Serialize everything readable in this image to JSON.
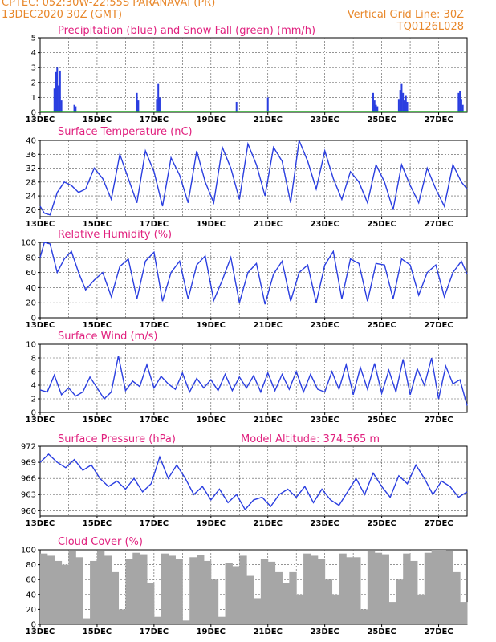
{
  "header": {
    "station": "CPTEC:   052:30W-22:55S   PARANAVAI (PR)",
    "run": "13DEC2020 30Z (GMT)",
    "grid_note": "Vertical Grid Line: 30Z",
    "code": "TQ0126L028"
  },
  "colors": {
    "header": "#e8872a",
    "title": "#e0207e",
    "line": "#2a3ee0",
    "snow": "#1fa01f",
    "cloud": "#a6a6a6"
  },
  "x_labels": [
    "13DEC",
    "15DEC",
    "17DEC",
    "19DEC",
    "21DEC",
    "23DEC",
    "25DEC",
    "27DEC"
  ],
  "chart_data": [
    {
      "type": "bar",
      "title": "Precipitation (blue) and Snow Fall (green) (mm/h)",
      "ylim": [
        0,
        5
      ],
      "yticks": [
        0,
        1,
        2,
        3,
        4,
        5
      ],
      "series": [
        {
          "name": "Precipitation",
          "x": [
            0.5,
            0.55,
            0.6,
            0.65,
            0.7,
            0.75,
            1.2,
            1.25,
            3.4,
            3.45,
            4.1,
            4.15,
            4.2,
            6.9,
            8.0,
            11.7,
            11.75,
            11.8,
            11.85,
            12.6,
            12.65,
            12.7,
            12.75,
            12.8,
            12.85,
            12.9,
            14.7,
            14.75,
            14.8,
            14.85
          ],
          "values": [
            1.6,
            2.7,
            3.0,
            1.8,
            2.8,
            0.8,
            0.5,
            0.4,
            1.3,
            0.8,
            0.9,
            1.9,
            1.0,
            0.7,
            1.0,
            1.3,
            0.8,
            0.5,
            0.4,
            0.9,
            1.5,
            1.9,
            1.3,
            0.8,
            1.1,
            0.7,
            1.3,
            1.4,
            0.9,
            0.5
          ]
        },
        {
          "name": "Snow Fall",
          "x": [
            0,
            15
          ],
          "values": [
            0,
            0
          ]
        }
      ]
    },
    {
      "type": "line",
      "title": "Surface Temperature (nC)",
      "ylim": [
        18,
        40
      ],
      "yticks": [
        20,
        24,
        28,
        32,
        36,
        40
      ],
      "series": [
        {
          "name": "Temperature",
          "x": [
            0,
            0.15,
            0.35,
            0.6,
            0.85,
            1.1,
            1.35,
            1.6,
            1.9,
            2.2,
            2.5,
            2.8,
            3.1,
            3.4,
            3.7,
            4.0,
            4.3,
            4.6,
            4.9,
            5.2,
            5.5,
            5.8,
            6.1,
            6.4,
            6.7,
            7.0,
            7.3,
            7.6,
            7.9,
            8.2,
            8.5,
            8.8,
            9.1,
            9.4,
            9.7,
            10.0,
            10.3,
            10.6,
            10.9,
            11.2,
            11.5,
            11.8,
            12.1,
            12.4,
            12.7,
            13.0,
            13.3,
            13.6,
            13.9,
            14.2,
            14.5,
            14.8,
            15.0
          ],
          "values": [
            21,
            19,
            18.5,
            25,
            28,
            27,
            25,
            26,
            32,
            29,
            23,
            36,
            29,
            22,
            37,
            31,
            21,
            35,
            30,
            22,
            37,
            28,
            22,
            38,
            32,
            23,
            39,
            33,
            24,
            38,
            34,
            22,
            40,
            34,
            26,
            37,
            29,
            23,
            31,
            28,
            22,
            33,
            28,
            20,
            33,
            27,
            22,
            32,
            26,
            21,
            33,
            28,
            26
          ]
        }
      ]
    },
    {
      "type": "line",
      "title": "Relative Humidity (%)",
      "ylim": [
        0,
        100
      ],
      "yticks": [
        0,
        20,
        40,
        60,
        80,
        100
      ],
      "series": [
        {
          "name": "Relative Humidity",
          "x": [
            0,
            0.15,
            0.35,
            0.6,
            0.85,
            1.1,
            1.35,
            1.6,
            1.9,
            2.2,
            2.5,
            2.8,
            3.1,
            3.4,
            3.7,
            4.0,
            4.3,
            4.6,
            4.9,
            5.2,
            5.5,
            5.8,
            6.1,
            6.4,
            6.7,
            7.0,
            7.3,
            7.6,
            7.9,
            8.2,
            8.5,
            8.8,
            9.1,
            9.4,
            9.7,
            10.0,
            10.3,
            10.6,
            10.9,
            11.2,
            11.5,
            11.8,
            12.1,
            12.4,
            12.7,
            13.0,
            13.3,
            13.6,
            13.9,
            14.2,
            14.5,
            14.8,
            15.0
          ],
          "values": [
            80,
            100,
            98,
            60,
            78,
            88,
            60,
            37,
            50,
            60,
            28,
            68,
            78,
            25,
            75,
            87,
            22,
            60,
            75,
            25,
            70,
            82,
            23,
            50,
            80,
            20,
            60,
            72,
            18,
            58,
            75,
            22,
            60,
            70,
            20,
            70,
            88,
            25,
            78,
            72,
            22,
            72,
            70,
            25,
            78,
            70,
            30,
            60,
            70,
            28,
            60,
            75,
            58
          ]
        }
      ]
    },
    {
      "type": "line",
      "title": "Surface Wind (m/s)",
      "ylim": [
        0,
        10
      ],
      "yticks": [
        0,
        2,
        4,
        6,
        8,
        10
      ],
      "series": [
        {
          "name": "Wind Speed",
          "x": [
            0,
            0.25,
            0.5,
            0.75,
            1.0,
            1.25,
            1.5,
            1.75,
            2.0,
            2.25,
            2.5,
            2.75,
            3.0,
            3.25,
            3.5,
            3.75,
            4.0,
            4.25,
            4.5,
            4.75,
            5.0,
            5.25,
            5.5,
            5.75,
            6.0,
            6.25,
            6.5,
            6.75,
            7.0,
            7.25,
            7.5,
            7.75,
            8.0,
            8.25,
            8.5,
            8.75,
            9.0,
            9.25,
            9.5,
            9.75,
            10.0,
            10.25,
            10.5,
            10.75,
            11.0,
            11.25,
            11.5,
            11.75,
            12.0,
            12.25,
            12.5,
            12.75,
            13.0,
            13.25,
            13.5,
            13.75,
            14.0,
            14.25,
            14.5,
            14.75,
            15.0
          ],
          "values": [
            3.3,
            3.0,
            5.5,
            2.6,
            3.6,
            2.4,
            3.0,
            5.2,
            3.6,
            2.0,
            3.0,
            8.3,
            3.2,
            4.6,
            3.8,
            7.0,
            3.6,
            5.3,
            4.2,
            3.4,
            5.8,
            3.0,
            5.0,
            3.6,
            4.8,
            3.2,
            5.6,
            3.2,
            5.2,
            3.6,
            5.4,
            3.0,
            5.8,
            3.2,
            5.6,
            3.4,
            6.0,
            3.0,
            5.6,
            3.4,
            3.0,
            6.0,
            3.4,
            7.0,
            2.6,
            6.6,
            3.4,
            7.2,
            2.8,
            6.2,
            3.0,
            7.8,
            2.6,
            6.4,
            4.0,
            8.0,
            2.0,
            6.8,
            4.2,
            4.8,
            1.0
          ]
        }
      ]
    },
    {
      "type": "line",
      "title": "Surface Pressure (hPa)",
      "annotation": "Model Altitude: 374.565  m",
      "ylim": [
        959,
        972
      ],
      "yticks": [
        960,
        963,
        966,
        969,
        972
      ],
      "series": [
        {
          "name": "Pressure",
          "x": [
            0,
            0.3,
            0.6,
            0.9,
            1.2,
            1.5,
            1.8,
            2.1,
            2.4,
            2.7,
            3.0,
            3.3,
            3.6,
            3.9,
            4.2,
            4.5,
            4.8,
            5.1,
            5.4,
            5.7,
            6.0,
            6.3,
            6.6,
            6.9,
            7.2,
            7.5,
            7.8,
            8.1,
            8.4,
            8.7,
            9.0,
            9.3,
            9.6,
            9.9,
            10.2,
            10.5,
            10.8,
            11.1,
            11.4,
            11.7,
            12.0,
            12.3,
            12.6,
            12.9,
            13.2,
            13.5,
            13.8,
            14.1,
            14.4,
            14.7,
            15.0
          ],
          "values": [
            969,
            970.5,
            969,
            968,
            969.5,
            967.5,
            968.5,
            966,
            964.5,
            965.5,
            964,
            966,
            963.5,
            965,
            970,
            966,
            968.5,
            966,
            963,
            964.5,
            962,
            964,
            961.5,
            963,
            960.2,
            962,
            962.5,
            960.8,
            963,
            964,
            962.5,
            964.5,
            961.5,
            964,
            962,
            961,
            963.5,
            966,
            963,
            967,
            964.5,
            962.5,
            966.5,
            965,
            968.5,
            966,
            963,
            965.5,
            964.5,
            962.5,
            963.5
          ]
        }
      ]
    },
    {
      "type": "bar",
      "title": "Cloud Cover (%)",
      "ylim": [
        0,
        100
      ],
      "yticks": [
        0,
        20,
        40,
        60,
        80,
        100
      ],
      "series": [
        {
          "name": "Cloud Cover",
          "x": [
            0,
            0.25,
            0.5,
            0.75,
            1.0,
            1.25,
            1.5,
            1.75,
            2.0,
            2.25,
            2.5,
            2.75,
            3.0,
            3.25,
            3.5,
            3.75,
            4.0,
            4.25,
            4.5,
            4.75,
            5.0,
            5.25,
            5.5,
            5.75,
            6.0,
            6.25,
            6.5,
            6.75,
            7.0,
            7.25,
            7.5,
            7.75,
            8.0,
            8.25,
            8.5,
            8.75,
            9.0,
            9.25,
            9.5,
            9.75,
            10.0,
            10.25,
            10.5,
            10.75,
            11.0,
            11.25,
            11.5,
            11.75,
            12.0,
            12.25,
            12.5,
            12.75,
            13.0,
            13.25,
            13.5,
            13.75,
            14.0,
            14.25,
            14.5,
            14.75
          ],
          "values": [
            95,
            92,
            85,
            80,
            98,
            90,
            8,
            85,
            98,
            92,
            70,
            20,
            88,
            96,
            94,
            55,
            10,
            95,
            92,
            88,
            5,
            90,
            93,
            85,
            60,
            10,
            82,
            78,
            92,
            65,
            35,
            88,
            84,
            70,
            55,
            70,
            40,
            95,
            92,
            88,
            60,
            40,
            95,
            90,
            90,
            20,
            98,
            96,
            94,
            30,
            60,
            95,
            85,
            40,
            96,
            100,
            100,
            98,
            70,
            30
          ]
        }
      ]
    }
  ]
}
